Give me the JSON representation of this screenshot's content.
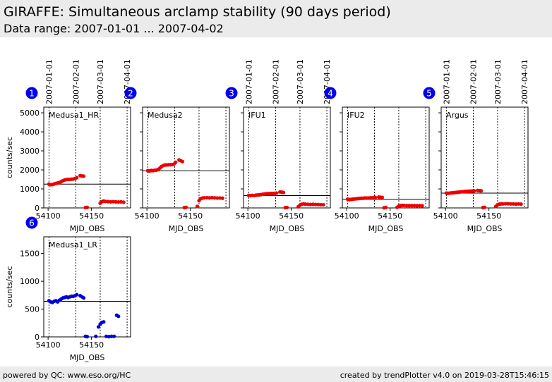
{
  "header": {
    "title": "GIRAFFE: Simultaneous arclamp stability (90 days period)",
    "subtitle": "Data range: 2007-01-01 ... 2007-04-02"
  },
  "footer": {
    "left": "powered by QC: www.eso.org/HC",
    "right": "created by trendPlotter v4.0 on 2019-03-28T15:46:15"
  },
  "colors": {
    "badge": "#0000ee",
    "red_series": "#ee0000",
    "blue_series": "#0000dd"
  },
  "chart_data": [
    {
      "type": "scatter",
      "badge": "1",
      "label": "Medusa1_HR",
      "ylabel": "counts/sec",
      "xlabel": "MJD_OBS",
      "xlim": [
        54095,
        54195
      ],
      "ylim": [
        0,
        5300
      ],
      "yticks": [
        0,
        1000,
        2000,
        3000,
        4000,
        5000
      ],
      "ytick_labels": [
        "0",
        "1000",
        "2000",
        "3000",
        "4000",
        "5000"
      ],
      "xticks": [
        54100,
        54150
      ],
      "xtick_labels": [
        "54100",
        "54150"
      ],
      "date_markers": [
        54101,
        54132,
        54160,
        54191
      ],
      "date_labels": [
        "2007-01-01",
        "2007-02-01",
        "2007-03-01",
        "2007-04-01"
      ],
      "reference": 1250,
      "series": [
        {
          "color": "#ee0000",
          "points": [
            [
              54101,
              1250
            ],
            [
              54103,
              1220
            ],
            [
              54105,
              1230
            ],
            [
              54107,
              1260
            ],
            [
              54109,
              1290
            ],
            [
              54111,
              1310
            ],
            [
              54113,
              1330
            ],
            [
              54115,
              1380
            ],
            [
              54117,
              1430
            ],
            [
              54119,
              1470
            ],
            [
              54121,
              1490
            ],
            [
              54123,
              1500
            ],
            [
              54125,
              1500
            ],
            [
              54127,
              1510
            ],
            [
              54129,
              1520
            ],
            [
              54131,
              1540
            ],
            [
              54133,
              1590
            ],
            [
              54137,
              1700
            ],
            [
              54139,
              1680
            ],
            [
              54141,
              1670
            ],
            [
              54143,
              15
            ],
            [
              54145,
              30
            ],
            [
              54160,
              250
            ],
            [
              54162,
              330
            ],
            [
              54164,
              360
            ],
            [
              54166,
              340
            ],
            [
              54169,
              330
            ],
            [
              54172,
              320
            ],
            [
              54175,
              330
            ],
            [
              54178,
              320
            ],
            [
              54181,
              310
            ],
            [
              54184,
              320
            ],
            [
              54187,
              300
            ]
          ]
        }
      ]
    },
    {
      "type": "scatter",
      "badge": "2",
      "label": "Medusa2",
      "ylabel": "",
      "xlabel": "MJD_OBS",
      "xlim": [
        54095,
        54195
      ],
      "ylim": [
        0,
        5300
      ],
      "yticks": [
        0,
        1000,
        2000,
        3000,
        4000,
        5000
      ],
      "ytick_labels": [],
      "xticks": [
        54100,
        54150
      ],
      "xtick_labels": [
        "54100",
        "54150"
      ],
      "date_markers": [
        54101,
        54132,
        54160,
        54191
      ],
      "date_labels": [],
      "reference": 1950,
      "series": [
        {
          "color": "#ee0000",
          "points": [
            [
              54101,
              1960
            ],
            [
              54103,
              1940
            ],
            [
              54105,
              1970
            ],
            [
              54107,
              1960
            ],
            [
              54109,
              1980
            ],
            [
              54111,
              1990
            ],
            [
              54113,
              2020
            ],
            [
              54115,
              2100
            ],
            [
              54117,
              2180
            ],
            [
              54119,
              2230
            ],
            [
              54121,
              2260
            ],
            [
              54123,
              2260
            ],
            [
              54125,
              2270
            ],
            [
              54127,
              2270
            ],
            [
              54129,
              2280
            ],
            [
              54131,
              2300
            ],
            [
              54133,
              2400
            ],
            [
              54137,
              2520
            ],
            [
              54139,
              2480
            ],
            [
              54141,
              2440
            ],
            [
              54143,
              15
            ],
            [
              54145,
              30
            ],
            [
              54158,
              80
            ],
            [
              54160,
              380
            ],
            [
              54162,
              490
            ],
            [
              54164,
              520
            ],
            [
              54166,
              530
            ],
            [
              54169,
              540
            ],
            [
              54172,
              530
            ],
            [
              54175,
              540
            ],
            [
              54178,
              530
            ],
            [
              54181,
              520
            ],
            [
              54184,
              520
            ],
            [
              54187,
              510
            ]
          ]
        }
      ]
    },
    {
      "type": "scatter",
      "badge": "3",
      "label": "IFU1",
      "ylabel": "",
      "xlabel": "MJD_OBS",
      "xlim": [
        54095,
        54195
      ],
      "ylim": [
        0,
        5300
      ],
      "yticks": [
        0,
        1000,
        2000,
        3000,
        4000,
        5000
      ],
      "ytick_labels": [],
      "xticks": [
        54100,
        54150
      ],
      "xtick_labels": [
        "54100",
        "54150"
      ],
      "date_markers": [
        54101,
        54132,
        54160,
        54191
      ],
      "date_labels": [
        "2007-01-01",
        "2007-02-01",
        "2007-03-01",
        "2007-04-01"
      ],
      "reference": 650,
      "series": [
        {
          "color": "#ee0000",
          "points": [
            [
              54101,
              660
            ],
            [
              54103,
              650
            ],
            [
              54105,
              660
            ],
            [
              54107,
              650
            ],
            [
              54109,
              670
            ],
            [
              54111,
              680
            ],
            [
              54113,
              690
            ],
            [
              54115,
              700
            ],
            [
              54117,
              720
            ],
            [
              54119,
              730
            ],
            [
              54121,
              740
            ],
            [
              54123,
              750
            ],
            [
              54125,
              750
            ],
            [
              54127,
              760
            ],
            [
              54129,
              760
            ],
            [
              54131,
              770
            ],
            [
              54133,
              780
            ],
            [
              54137,
              840
            ],
            [
              54139,
              830
            ],
            [
              54141,
              810
            ],
            [
              54143,
              15
            ],
            [
              54145,
              25
            ],
            [
              54158,
              60
            ],
            [
              54160,
              150
            ],
            [
              54162,
              190
            ],
            [
              54164,
              210
            ],
            [
              54166,
              200
            ],
            [
              54169,
              190
            ],
            [
              54172,
              180
            ],
            [
              54175,
              190
            ],
            [
              54178,
              180
            ],
            [
              54181,
              180
            ],
            [
              54184,
              170
            ],
            [
              54187,
              170
            ]
          ]
        }
      ]
    },
    {
      "type": "scatter",
      "badge": "4",
      "label": "IFU2",
      "ylabel": "",
      "xlabel": "MJD_OBS",
      "xlim": [
        54095,
        54195
      ],
      "ylim": [
        0,
        5300
      ],
      "yticks": [
        0,
        1000,
        2000,
        3000,
        4000,
        5000
      ],
      "ytick_labels": [],
      "xticks": [
        54100,
        54150
      ],
      "xtick_labels": [
        "54100",
        "54150"
      ],
      "date_markers": [
        54101,
        54132,
        54160,
        54191
      ],
      "date_labels": [],
      "reference": 450,
      "series": [
        {
          "color": "#ee0000",
          "points": [
            [
              54101,
              460
            ],
            [
              54103,
              440
            ],
            [
              54105,
              450
            ],
            [
              54107,
              460
            ],
            [
              54109,
              470
            ],
            [
              54111,
              480
            ],
            [
              54113,
              490
            ],
            [
              54115,
              500
            ],
            [
              54117,
              510
            ],
            [
              54119,
              510
            ],
            [
              54121,
              520
            ],
            [
              54123,
              520
            ],
            [
              54125,
              520
            ],
            [
              54127,
              530
            ],
            [
              54129,
              530
            ],
            [
              54131,
              540
            ],
            [
              54133,
              550
            ],
            [
              54137,
              570
            ],
            [
              54139,
              560
            ],
            [
              54141,
              550
            ],
            [
              54143,
              10
            ],
            [
              54145,
              25
            ],
            [
              54158,
              30
            ],
            [
              54160,
              100
            ],
            [
              54162,
              120
            ],
            [
              54164,
              130
            ],
            [
              54166,
              130
            ],
            [
              54169,
              120
            ],
            [
              54172,
              120
            ],
            [
              54175,
              120
            ],
            [
              54178,
              120
            ],
            [
              54181,
              115
            ],
            [
              54184,
              120
            ],
            [
              54187,
              110
            ]
          ]
        }
      ]
    },
    {
      "type": "scatter",
      "badge": "5",
      "label": "Argus",
      "ylabel": "",
      "xlabel": "MJD_OBS",
      "xlim": [
        54095,
        54195
      ],
      "ylim": [
        0,
        5300
      ],
      "yticks": [
        0,
        1000,
        2000,
        3000,
        4000,
        5000
      ],
      "ytick_labels": [],
      "xticks": [
        54100,
        54150
      ],
      "xtick_labels": [
        "54100",
        "54150"
      ],
      "date_markers": [
        54101,
        54132,
        54160,
        54191
      ],
      "date_labels": [
        "2007-01-01",
        "2007-02-01",
        "2007-03-01",
        "2007-04-01"
      ],
      "reference": 780,
      "series": [
        {
          "color": "#ee0000",
          "points": [
            [
              54101,
              780
            ],
            [
              54103,
              770
            ],
            [
              54105,
              780
            ],
            [
              54107,
              790
            ],
            [
              54109,
              800
            ],
            [
              54111,
              810
            ],
            [
              54113,
              820
            ],
            [
              54115,
              830
            ],
            [
              54117,
              840
            ],
            [
              54119,
              850
            ],
            [
              54121,
              860
            ],
            [
              54123,
              870
            ],
            [
              54125,
              870
            ],
            [
              54127,
              880
            ],
            [
              54129,
              880
            ],
            [
              54131,
              890
            ],
            [
              54133,
              900
            ],
            [
              54137,
              920
            ],
            [
              54139,
              910
            ],
            [
              54141,
              900
            ],
            [
              54143,
              15
            ],
            [
              54145,
              30
            ],
            [
              54158,
              80
            ],
            [
              54160,
              170
            ],
            [
              54162,
              200
            ],
            [
              54164,
              210
            ],
            [
              54166,
              210
            ],
            [
              54169,
              220
            ],
            [
              54172,
              220
            ],
            [
              54175,
              210
            ],
            [
              54178,
              210
            ],
            [
              54181,
              200
            ],
            [
              54184,
              210
            ],
            [
              54187,
              200
            ]
          ]
        }
      ]
    },
    {
      "type": "scatter",
      "badge": "6",
      "label": "Medusa1_LR",
      "ylabel": "counts/sec",
      "xlabel": "MJD_OBS",
      "xlim": [
        54095,
        54195
      ],
      "ylim": [
        0,
        1800
      ],
      "yticks": [
        0,
        500,
        1000,
        1500
      ],
      "ytick_labels": [
        "0",
        "500",
        "1000",
        "1500"
      ],
      "xticks": [
        54100,
        54150
      ],
      "xtick_labels": [
        "54100",
        "54150"
      ],
      "date_markers": [
        54101,
        54132,
        54160,
        54191
      ],
      "date_labels": [],
      "reference": 640,
      "series": [
        {
          "color": "#0000dd",
          "points": [
            [
              54101,
              650
            ],
            [
              54103,
              630
            ],
            [
              54105,
              620
            ],
            [
              54107,
              640
            ],
            [
              54109,
              650
            ],
            [
              54111,
              630
            ],
            [
              54113,
              660
            ],
            [
              54115,
              680
            ],
            [
              54117,
              700
            ],
            [
              54119,
              710
            ],
            [
              54121,
              720
            ],
            [
              54123,
              710
            ],
            [
              54125,
              720
            ],
            [
              54127,
              730
            ],
            [
              54129,
              730
            ],
            [
              54131,
              740
            ],
            [
              54133,
              760
            ],
            [
              54137,
              740
            ],
            [
              54139,
              720
            ],
            [
              54141,
              700
            ],
            [
              54143,
              10
            ],
            [
              54145,
              5
            ],
            [
              54155,
              10
            ],
            [
              54158,
              180
            ],
            [
              54160,
              230
            ],
            [
              54162,
              260
            ],
            [
              54164,
              270
            ],
            [
              54167,
              10
            ],
            [
              54170,
              5
            ],
            [
              54173,
              10
            ],
            [
              54176,
              10
            ],
            [
              54179,
              390
            ],
            [
              54181,
              370
            ]
          ]
        }
      ]
    }
  ]
}
